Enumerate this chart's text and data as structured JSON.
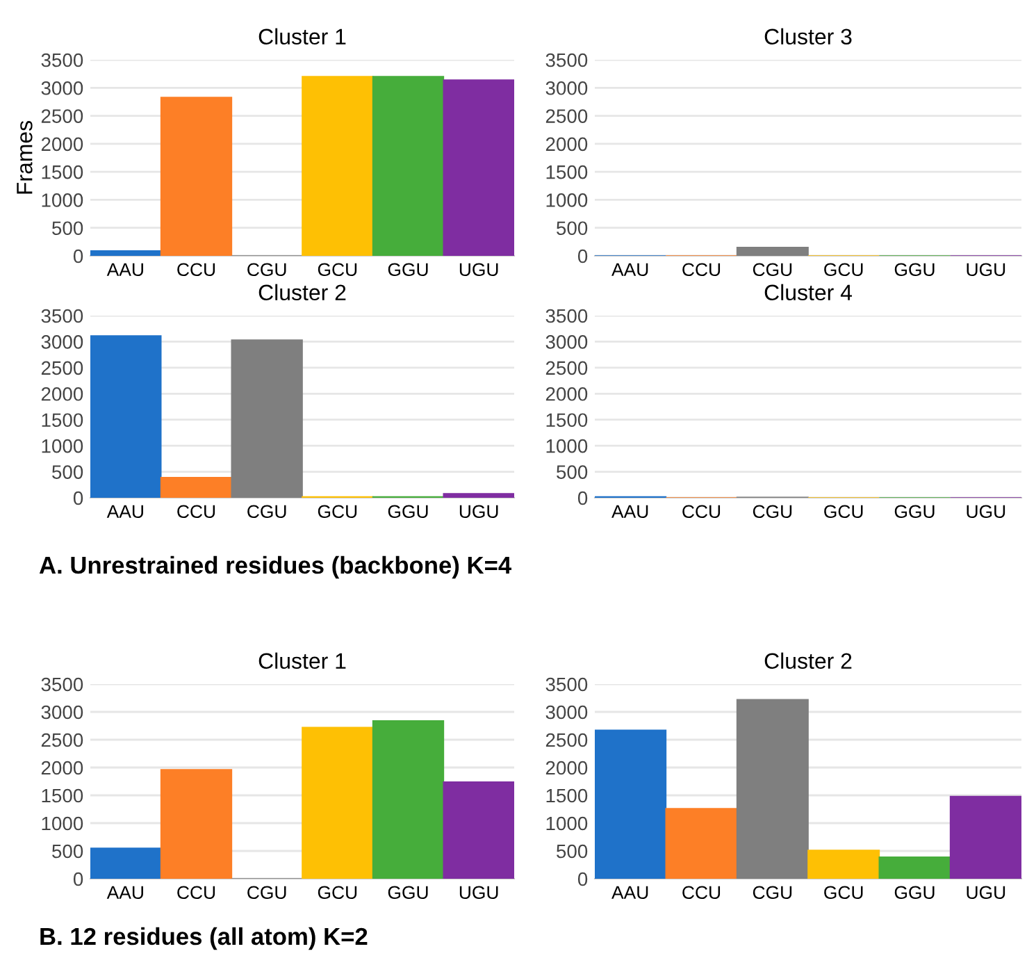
{
  "chart_data": [
    {
      "type": "bar",
      "title": "Cluster 1",
      "ylabel": "Frames",
      "categories": [
        "AAU",
        "CCU",
        "CGU",
        "GCU",
        "GGU",
        "UGU"
      ],
      "values": [
        90,
        2830,
        0,
        3200,
        3200,
        3140
      ],
      "colors": [
        "#1f72c9",
        "#fd7f26",
        "#7f7f7f",
        "#fec004",
        "#46ad3b",
        "#7f2da1"
      ],
      "ylim": [
        0,
        3500
      ],
      "yticks": [
        0,
        500,
        1000,
        1500,
        2000,
        2500,
        3000,
        3500
      ],
      "grid": "y"
    },
    {
      "type": "bar",
      "title": "Cluster 3",
      "categories": [
        "AAU",
        "CCU",
        "CGU",
        "GCU",
        "GGU",
        "UGU"
      ],
      "values": [
        0,
        0,
        150,
        0,
        0,
        0
      ],
      "colors": [
        "#1f72c9",
        "#fd7f26",
        "#7f7f7f",
        "#fec004",
        "#46ad3b",
        "#7f2da1"
      ],
      "ylim": [
        0,
        3500
      ],
      "yticks": [
        0,
        500,
        1000,
        1500,
        2000,
        2500,
        3000,
        3500
      ],
      "grid": "y"
    },
    {
      "type": "bar",
      "title": "Cluster 2",
      "annotations": [
        "A. Unrestrained residues (backbone) K=4"
      ],
      "categories": [
        "AAU",
        "CCU",
        "CGU",
        "GCU",
        "GGU",
        "UGU"
      ],
      "values": [
        3110,
        390,
        3030,
        20,
        20,
        80
      ],
      "colors": [
        "#1f72c9",
        "#fd7f26",
        "#7f7f7f",
        "#fec004",
        "#46ad3b",
        "#7f2da1"
      ],
      "ylim": [
        0,
        3500
      ],
      "yticks": [
        0,
        500,
        1000,
        1500,
        2000,
        2500,
        3000,
        3500
      ],
      "grid": "y"
    },
    {
      "type": "bar",
      "title": "Cluster 4",
      "categories": [
        "AAU",
        "CCU",
        "CGU",
        "GCU",
        "GGU",
        "UGU"
      ],
      "values": [
        20,
        0,
        10,
        0,
        0,
        0
      ],
      "colors": [
        "#1f72c9",
        "#fd7f26",
        "#7f7f7f",
        "#fec004",
        "#46ad3b",
        "#7f2da1"
      ],
      "ylim": [
        0,
        3500
      ],
      "yticks": [
        0,
        500,
        1000,
        1500,
        2000,
        2500,
        3000,
        3500
      ],
      "grid": "y"
    },
    {
      "type": "bar",
      "title": "Cluster 1",
      "annotations": [
        "B. 12 residues (all atom) K=2"
      ],
      "categories": [
        "AAU",
        "CCU",
        "CGU",
        "GCU",
        "GGU",
        "UGU"
      ],
      "values": [
        550,
        1960,
        0,
        2720,
        2840,
        1740
      ],
      "colors": [
        "#1f72c9",
        "#fd7f26",
        "#7f7f7f",
        "#fec004",
        "#46ad3b",
        "#7f2da1"
      ],
      "ylim": [
        0,
        3500
      ],
      "yticks": [
        0,
        500,
        1000,
        1500,
        2000,
        2500,
        3000,
        3500
      ],
      "grid": "y"
    },
    {
      "type": "bar",
      "title": "Cluster 2",
      "categories": [
        "AAU",
        "CCU",
        "CGU",
        "GCU",
        "GGU",
        "UGU"
      ],
      "values": [
        2670,
        1260,
        3220,
        510,
        390,
        1480
      ],
      "colors": [
        "#1f72c9",
        "#fd7f26",
        "#7f7f7f",
        "#fec004",
        "#46ad3b",
        "#7f2da1"
      ],
      "ylim": [
        0,
        3500
      ],
      "yticks": [
        0,
        500,
        1000,
        1500,
        2000,
        2500,
        3000,
        3500
      ],
      "grid": "y"
    }
  ]
}
